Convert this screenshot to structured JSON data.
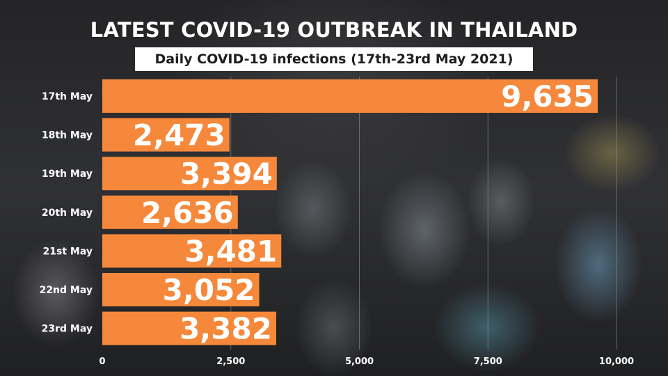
{
  "header": {
    "title": "LATEST COVID-19 OUTBREAK IN THAILAND",
    "subtitle": "Daily COVID-19 infections (17th-23rd May 2021)"
  },
  "colors": {
    "bar": "#f5883a",
    "text": "#ffffff",
    "gridline": "#9a9a9a"
  },
  "chart_data": {
    "type": "bar",
    "orientation": "horizontal",
    "categories": [
      "17th May",
      "18th May",
      "19th May",
      "20th May",
      "21st May",
      "22nd May",
      "23rd May"
    ],
    "values": [
      9635,
      2473,
      3394,
      2636,
      3481,
      3052,
      3382
    ],
    "value_labels": [
      "9,635",
      "2,473",
      "3,394",
      "2,636",
      "3,481",
      "3,052",
      "3,382"
    ],
    "xlim": [
      0,
      10000
    ],
    "x_ticks": [
      0,
      2500,
      5000,
      7500,
      10000
    ],
    "x_tick_labels": [
      "0",
      "2,500",
      "5,000",
      "7,500",
      "10,000"
    ],
    "grid": true,
    "legend": "none"
  }
}
